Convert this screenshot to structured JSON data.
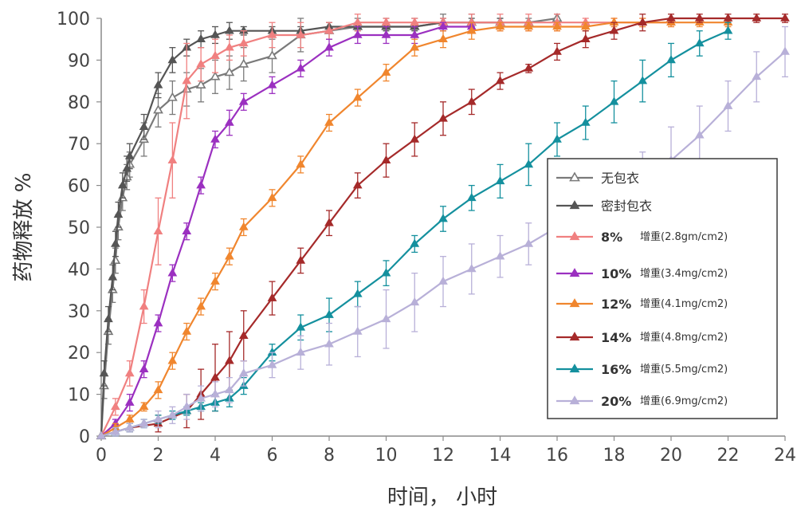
{
  "chart_data": {
    "type": "line",
    "title": "",
    "xlabel": "时间， 小时",
    "ylabel": "药物释放 %",
    "xlim": [
      0,
      24
    ],
    "ylim": [
      0,
      100
    ],
    "x_ticks": [
      "0",
      "2",
      "4",
      "6",
      "8",
      "10",
      "12",
      "14",
      "16",
      "18",
      "20",
      "22",
      "24"
    ],
    "y_ticks": [
      "0",
      "10",
      "20",
      "30",
      "40",
      "50",
      "60",
      "70",
      "80",
      "90",
      "100"
    ],
    "grid": false,
    "legend_position": "center-right",
    "series": [
      {
        "name": "无包衣",
        "label_suffix": "",
        "color": "#7a7a7a",
        "marker": "open-triangle",
        "x": [
          0,
          0.1,
          0.25,
          0.4,
          0.5,
          0.6,
          0.75,
          0.9,
          1,
          1.5,
          2,
          2.5,
          3,
          3.5,
          4,
          4.5,
          5,
          6,
          7,
          8,
          9,
          10,
          11,
          12,
          13,
          14,
          15,
          16
        ],
        "y": [
          0,
          12,
          25,
          35,
          42,
          50,
          57,
          62,
          65,
          71,
          78,
          81,
          83,
          84,
          86,
          87,
          89,
          91,
          96,
          97,
          98,
          98,
          98,
          99,
          99,
          99,
          99,
          100
        ],
        "err": [
          0,
          3,
          3,
          3,
          3,
          3,
          3,
          3,
          3,
          4,
          4,
          4,
          4,
          4,
          4,
          4,
          4,
          4,
          4,
          2,
          2,
          2,
          2,
          2,
          2,
          1,
          1,
          1
        ]
      },
      {
        "name": "密封包衣",
        "label_suffix": "",
        "color": "#555555",
        "marker": "triangle",
        "x": [
          0,
          0.1,
          0.25,
          0.4,
          0.5,
          0.6,
          0.75,
          0.9,
          1,
          1.5,
          2,
          2.5,
          3,
          3.5,
          4,
          4.5,
          5,
          6,
          7,
          8,
          9,
          10,
          11,
          12,
          13,
          14
        ],
        "y": [
          0,
          15,
          28,
          38,
          46,
          53,
          60,
          64,
          67,
          74,
          84,
          90,
          93,
          95,
          96,
          97,
          97,
          97,
          97,
          98,
          98,
          98,
          98,
          99,
          99,
          99
        ],
        "err": [
          0,
          3,
          3,
          3,
          3,
          3,
          3,
          3,
          3,
          3,
          3,
          3,
          2,
          2,
          2,
          2,
          1,
          1,
          1,
          1,
          1,
          1,
          1,
          1,
          1,
          1
        ]
      },
      {
        "name": "8%",
        "label_suffix": "增重(2.8gm/cm2)",
        "color": "#f08080",
        "marker": "triangle",
        "x": [
          0,
          0.5,
          1,
          1.5,
          2,
          2.5,
          3,
          3.5,
          4,
          4.5,
          5,
          6,
          7,
          8,
          9,
          10,
          11,
          12,
          13,
          14,
          15,
          16,
          17,
          18,
          19,
          20
        ],
        "y": [
          0,
          7,
          15,
          31,
          49,
          66,
          85,
          89,
          91,
          93,
          94,
          96,
          96,
          97,
          99,
          99,
          99,
          99,
          99,
          99,
          99,
          99,
          99,
          99,
          99,
          99
        ],
        "err": [
          0,
          2,
          3,
          4,
          8,
          9,
          9,
          4,
          4,
          3,
          3,
          3,
          3,
          2,
          2,
          1,
          1,
          1,
          2,
          2,
          2,
          2,
          1,
          1,
          1,
          1
        ]
      },
      {
        "name": "10%",
        "label_suffix": "增重(3.4mg/cm2)",
        "color": "#9b30c0",
        "marker": "triangle",
        "x": [
          0,
          0.5,
          1,
          1.5,
          2,
          2.5,
          3,
          3.5,
          4,
          4.5,
          5,
          6,
          7,
          8,
          9,
          10,
          11,
          12,
          13
        ],
        "y": [
          0,
          3,
          8,
          16,
          27,
          39,
          49,
          60,
          71,
          75,
          80,
          84,
          88,
          93,
          96,
          96,
          96,
          98,
          98
        ],
        "err": [
          0,
          1,
          2,
          2,
          2,
          2,
          2,
          2,
          2,
          3,
          2,
          2,
          2,
          2,
          2,
          2,
          2,
          1,
          1
        ]
      },
      {
        "name": "12%",
        "label_suffix": "增重(4.1mg/cm2)",
        "color": "#f0862e",
        "marker": "triangle",
        "x": [
          0,
          0.5,
          1,
          1.5,
          2,
          2.5,
          3,
          3.5,
          4,
          4.5,
          5,
          6,
          7,
          8,
          9,
          10,
          11,
          12,
          13,
          14,
          15,
          16,
          17,
          18,
          19,
          20,
          21,
          22
        ],
        "y": [
          0,
          2,
          4,
          7,
          11,
          18,
          25,
          31,
          37,
          43,
          50,
          57,
          65,
          75,
          81,
          87,
          93,
          95,
          97,
          98,
          98,
          98,
          98,
          99,
          99,
          99,
          99,
          99
        ],
        "err": [
          0,
          1,
          1,
          1,
          2,
          2,
          2,
          2,
          2,
          2,
          2,
          2,
          2,
          2,
          2,
          2,
          2,
          2,
          2,
          1,
          1,
          1,
          1,
          1,
          1,
          1,
          1,
          1
        ]
      },
      {
        "name": "14%",
        "label_suffix": "增重(4.8mg/cm2)",
        "color": "#a52a2a",
        "marker": "triangle",
        "x": [
          0,
          1,
          2,
          3,
          3.5,
          4,
          4.5,
          5,
          6,
          7,
          8,
          9,
          10,
          11,
          12,
          13,
          14,
          15,
          16,
          17,
          18,
          19,
          20,
          21,
          22,
          23,
          24
        ],
        "y": [
          0,
          2,
          3,
          6,
          10,
          14,
          18,
          24,
          33,
          42,
          51,
          60,
          66,
          71,
          76,
          80,
          85,
          88,
          92,
          95,
          97,
          99,
          100,
          100,
          100,
          100,
          100
        ],
        "err": [
          0,
          1,
          2,
          4,
          6,
          8,
          7,
          6,
          4,
          3,
          3,
          3,
          4,
          4,
          4,
          3,
          2,
          1,
          2,
          2,
          2,
          2,
          1,
          1,
          1,
          1,
          1
        ]
      },
      {
        "name": "16%",
        "label_suffix": "增重(5.5mg/cm2)",
        "color": "#14909e",
        "marker": "triangle",
        "x": [
          0,
          0.5,
          1,
          1.5,
          2,
          2.5,
          3,
          3.5,
          4,
          4.5,
          5,
          6,
          7,
          8,
          9,
          10,
          11,
          12,
          13,
          14,
          15,
          16,
          17,
          18,
          19,
          20,
          21,
          22
        ],
        "y": [
          0,
          1,
          2,
          3,
          4,
          5,
          6,
          7,
          8,
          9,
          12,
          20,
          26,
          29,
          34,
          39,
          46,
          52,
          57,
          61,
          65,
          71,
          75,
          80,
          85,
          90,
          94,
          97
        ],
        "err": [
          0,
          1,
          1,
          1,
          1,
          1,
          1,
          1,
          2,
          2,
          2,
          2,
          3,
          4,
          3,
          3,
          2,
          3,
          3,
          4,
          5,
          4,
          4,
          5,
          5,
          4,
          3,
          2
        ]
      },
      {
        "name": "20%",
        "label_suffix": "增重(6.9mg/cm2)",
        "color": "#b8b0d8",
        "marker": "triangle",
        "x": [
          0,
          0.5,
          1,
          1.5,
          2,
          2.5,
          3,
          3.5,
          4,
          4.5,
          5,
          6,
          7,
          8,
          9,
          10,
          11,
          12,
          13,
          14,
          15,
          16,
          17,
          18,
          19,
          20,
          21,
          22,
          23,
          24
        ],
        "y": [
          0,
          1,
          2,
          3,
          4,
          5,
          7,
          9,
          10,
          11,
          15,
          17,
          20,
          22,
          25,
          28,
          32,
          37,
          40,
          43,
          46,
          50,
          53,
          57,
          61,
          66,
          72,
          79,
          86,
          92
        ],
        "err": [
          0,
          1,
          1,
          1,
          2,
          2,
          3,
          3,
          3,
          3,
          3,
          3,
          4,
          5,
          6,
          7,
          7,
          6,
          6,
          5,
          5,
          5,
          6,
          6,
          7,
          8,
          7,
          6,
          6,
          6
        ]
      }
    ]
  }
}
